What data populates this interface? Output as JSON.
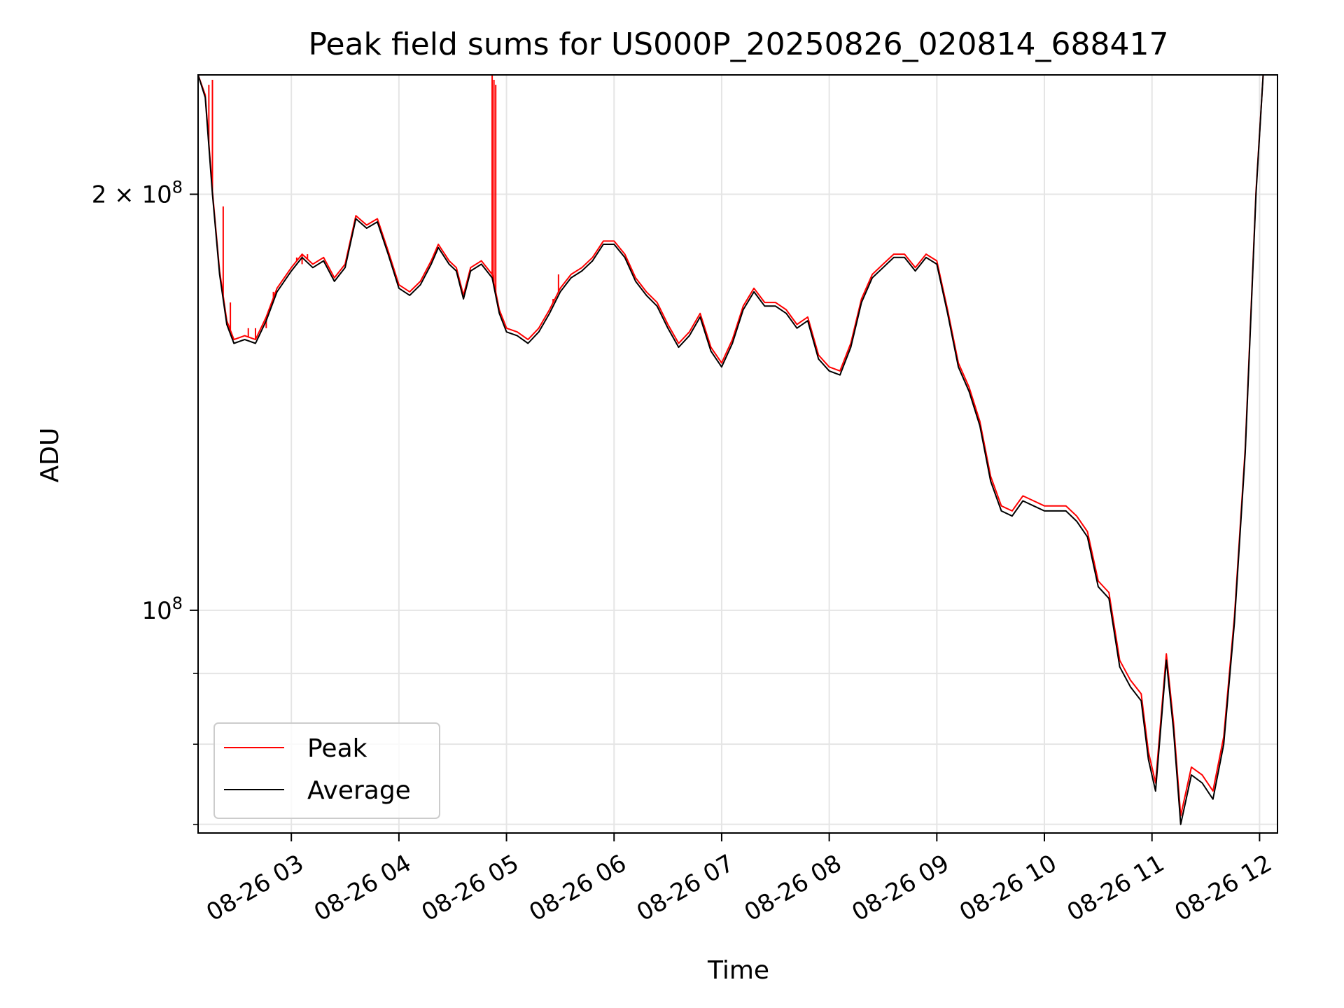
{
  "chart_data": {
    "type": "line",
    "title": "Peak field sums for US000P_20250826_020814_688417",
    "xlabel": "Time",
    "ylabel": "ADU",
    "y_scale": "log",
    "grid": true,
    "legend_position": "lower-left",
    "xlim": [
      "2025-08-26 02:08",
      "2025-08-26 12:10"
    ],
    "ylim": [
      69000000,
      244000000
    ],
    "x_ticks": [
      {
        "x": "2025-08-26 03:00",
        "label": "08-26 03"
      },
      {
        "x": "2025-08-26 04:00",
        "label": "08-26 04"
      },
      {
        "x": "2025-08-26 05:00",
        "label": "08-26 05"
      },
      {
        "x": "2025-08-26 06:00",
        "label": "08-26 06"
      },
      {
        "x": "2025-08-26 07:00",
        "label": "08-26 07"
      },
      {
        "x": "2025-08-26 08:00",
        "label": "08-26 08"
      },
      {
        "x": "2025-08-26 09:00",
        "label": "08-26 09"
      },
      {
        "x": "2025-08-26 10:00",
        "label": "08-26 10"
      },
      {
        "x": "2025-08-26 11:00",
        "label": "08-26 11"
      },
      {
        "x": "2025-08-26 12:00",
        "label": "08-26 12"
      }
    ],
    "y_major_ticks": [
      {
        "value": 100000000,
        "base": "10",
        "exp": "8",
        "mult": ""
      },
      {
        "value": 200000000,
        "base": "10",
        "exp": "8",
        "mult": "2 × "
      }
    ],
    "y_minor_ticks": [
      70000000,
      80000000,
      90000000
    ],
    "colors": {
      "peak": "#ff0000",
      "average": "#000000",
      "grid": "#e5e5e5"
    },
    "series": [
      {
        "name": "Average",
        "color": "#000000",
        "points": [
          [
            "2025-08-26 02:08",
            244000000
          ],
          [
            "2025-08-26 02:12",
            235000000
          ],
          [
            "2025-08-26 02:16",
            200000000
          ],
          [
            "2025-08-26 02:20",
            175000000
          ],
          [
            "2025-08-26 02:24",
            161000000
          ],
          [
            "2025-08-26 02:28",
            156000000
          ],
          [
            "2025-08-26 02:34",
            157000000
          ],
          [
            "2025-08-26 02:40",
            156000000
          ],
          [
            "2025-08-26 02:46",
            162000000
          ],
          [
            "2025-08-26 02:52",
            170000000
          ],
          [
            "2025-08-26 03:00",
            176000000
          ],
          [
            "2025-08-26 03:06",
            180000000
          ],
          [
            "2025-08-26 03:12",
            177000000
          ],
          [
            "2025-08-26 03:18",
            179000000
          ],
          [
            "2025-08-26 03:24",
            173000000
          ],
          [
            "2025-08-26 03:30",
            177000000
          ],
          [
            "2025-08-26 03:36",
            192000000
          ],
          [
            "2025-08-26 03:42",
            189000000
          ],
          [
            "2025-08-26 03:48",
            191000000
          ],
          [
            "2025-08-26 03:54",
            181000000
          ],
          [
            "2025-08-26 04:00",
            171000000
          ],
          [
            "2025-08-26 04:06",
            169000000
          ],
          [
            "2025-08-26 04:12",
            172000000
          ],
          [
            "2025-08-26 04:18",
            178000000
          ],
          [
            "2025-08-26 04:22",
            183000000
          ],
          [
            "2025-08-26 04:28",
            178000000
          ],
          [
            "2025-08-26 04:32",
            176000000
          ],
          [
            "2025-08-26 04:36",
            168000000
          ],
          [
            "2025-08-26 04:40",
            176000000
          ],
          [
            "2025-08-26 04:46",
            178000000
          ],
          [
            "2025-08-26 04:52",
            174000000
          ],
          [
            "2025-08-26 04:56",
            164000000
          ],
          [
            "2025-08-26 05:00",
            159000000
          ],
          [
            "2025-08-26 05:06",
            158000000
          ],
          [
            "2025-08-26 05:12",
            156000000
          ],
          [
            "2025-08-26 05:18",
            159000000
          ],
          [
            "2025-08-26 05:24",
            164000000
          ],
          [
            "2025-08-26 05:30",
            170000000
          ],
          [
            "2025-08-26 05:36",
            174000000
          ],
          [
            "2025-08-26 05:42",
            176000000
          ],
          [
            "2025-08-26 05:48",
            179000000
          ],
          [
            "2025-08-26 05:54",
            184000000
          ],
          [
            "2025-08-26 06:00",
            184000000
          ],
          [
            "2025-08-26 06:06",
            180000000
          ],
          [
            "2025-08-26 06:12",
            173000000
          ],
          [
            "2025-08-26 06:18",
            169000000
          ],
          [
            "2025-08-26 06:24",
            166000000
          ],
          [
            "2025-08-26 06:30",
            160000000
          ],
          [
            "2025-08-26 06:36",
            155000000
          ],
          [
            "2025-08-26 06:42",
            158000000
          ],
          [
            "2025-08-26 06:48",
            163000000
          ],
          [
            "2025-08-26 06:54",
            154000000
          ],
          [
            "2025-08-26 07:00",
            150000000
          ],
          [
            "2025-08-26 07:06",
            156000000
          ],
          [
            "2025-08-26 07:12",
            165000000
          ],
          [
            "2025-08-26 07:18",
            170000000
          ],
          [
            "2025-08-26 07:24",
            166000000
          ],
          [
            "2025-08-26 07:30",
            166000000
          ],
          [
            "2025-08-26 07:36",
            164000000
          ],
          [
            "2025-08-26 07:42",
            160000000
          ],
          [
            "2025-08-26 07:48",
            162000000
          ],
          [
            "2025-08-26 07:54",
            152000000
          ],
          [
            "2025-08-26 08:00",
            149000000
          ],
          [
            "2025-08-26 08:06",
            148000000
          ],
          [
            "2025-08-26 08:12",
            155000000
          ],
          [
            "2025-08-26 08:18",
            167000000
          ],
          [
            "2025-08-26 08:24",
            174000000
          ],
          [
            "2025-08-26 08:30",
            177000000
          ],
          [
            "2025-08-26 08:36",
            180000000
          ],
          [
            "2025-08-26 08:42",
            180000000
          ],
          [
            "2025-08-26 08:48",
            176000000
          ],
          [
            "2025-08-26 08:54",
            180000000
          ],
          [
            "2025-08-26 09:00",
            178000000
          ],
          [
            "2025-08-26 09:06",
            164000000
          ],
          [
            "2025-08-26 09:12",
            150000000
          ],
          [
            "2025-08-26 09:18",
            144000000
          ],
          [
            "2025-08-26 09:24",
            136000000
          ],
          [
            "2025-08-26 09:30",
            124000000
          ],
          [
            "2025-08-26 09:36",
            118000000
          ],
          [
            "2025-08-26 09:42",
            117000000
          ],
          [
            "2025-08-26 09:48",
            120000000
          ],
          [
            "2025-08-26 09:54",
            119000000
          ],
          [
            "2025-08-26 10:00",
            118000000
          ],
          [
            "2025-08-26 10:06",
            118000000
          ],
          [
            "2025-08-26 10:12",
            118000000
          ],
          [
            "2025-08-26 10:18",
            116000000
          ],
          [
            "2025-08-26 10:24",
            113000000
          ],
          [
            "2025-08-26 10:30",
            104000000
          ],
          [
            "2025-08-26 10:36",
            102000000
          ],
          [
            "2025-08-26 10:42",
            91000000
          ],
          [
            "2025-08-26 10:48",
            88000000
          ],
          [
            "2025-08-26 10:54",
            86000000
          ],
          [
            "2025-08-26 10:58",
            78000000
          ],
          [
            "2025-08-26 11:02",
            74000000
          ],
          [
            "2025-08-26 11:08",
            92000000
          ],
          [
            "2025-08-26 11:12",
            82000000
          ],
          [
            "2025-08-26 11:16",
            70000000
          ],
          [
            "2025-08-26 11:22",
            76000000
          ],
          [
            "2025-08-26 11:28",
            75000000
          ],
          [
            "2025-08-26 11:34",
            73000000
          ],
          [
            "2025-08-26 11:40",
            80000000
          ],
          [
            "2025-08-26 11:46",
            98000000
          ],
          [
            "2025-08-26 11:52",
            130000000
          ],
          [
            "2025-08-26 11:58",
            200000000
          ],
          [
            "2025-08-26 12:02",
            244000000
          ]
        ]
      },
      {
        "name": "Peak",
        "color": "#ff0000",
        "points": [
          [
            "2025-08-26 02:08",
            244000000
          ],
          [
            "2025-08-26 02:12",
            236000000
          ],
          [
            "2025-08-26 02:16",
            201000000
          ],
          [
            "2025-08-26 02:20",
            176000000
          ],
          [
            "2025-08-26 02:24",
            162000000
          ],
          [
            "2025-08-26 02:28",
            157000000
          ],
          [
            "2025-08-26 02:34",
            158000000
          ],
          [
            "2025-08-26 02:40",
            157000000
          ],
          [
            "2025-08-26 02:46",
            163000000
          ],
          [
            "2025-08-26 02:52",
            171000000
          ],
          [
            "2025-08-26 03:00",
            177000000
          ],
          [
            "2025-08-26 03:06",
            181000000
          ],
          [
            "2025-08-26 03:12",
            178000000
          ],
          [
            "2025-08-26 03:18",
            180000000
          ],
          [
            "2025-08-26 03:24",
            174000000
          ],
          [
            "2025-08-26 03:30",
            178000000
          ],
          [
            "2025-08-26 03:36",
            193000000
          ],
          [
            "2025-08-26 03:42",
            190000000
          ],
          [
            "2025-08-26 03:48",
            192000000
          ],
          [
            "2025-08-26 03:54",
            182000000
          ],
          [
            "2025-08-26 04:00",
            172000000
          ],
          [
            "2025-08-26 04:06",
            170000000
          ],
          [
            "2025-08-26 04:12",
            173000000
          ],
          [
            "2025-08-26 04:18",
            179000000
          ],
          [
            "2025-08-26 04:22",
            184000000
          ],
          [
            "2025-08-26 04:28",
            179000000
          ],
          [
            "2025-08-26 04:32",
            177000000
          ],
          [
            "2025-08-26 04:36",
            169000000
          ],
          [
            "2025-08-26 04:40",
            177000000
          ],
          [
            "2025-08-26 04:46",
            179000000
          ],
          [
            "2025-08-26 04:52",
            175000000
          ],
          [
            "2025-08-26 04:56",
            165000000
          ],
          [
            "2025-08-26 05:00",
            160000000
          ],
          [
            "2025-08-26 05:06",
            159000000
          ],
          [
            "2025-08-26 05:12",
            157000000
          ],
          [
            "2025-08-26 05:18",
            160000000
          ],
          [
            "2025-08-26 05:24",
            165000000
          ],
          [
            "2025-08-26 05:30",
            171000000
          ],
          [
            "2025-08-26 05:36",
            175000000
          ],
          [
            "2025-08-26 05:42",
            177000000
          ],
          [
            "2025-08-26 05:48",
            180000000
          ],
          [
            "2025-08-26 05:54",
            185000000
          ],
          [
            "2025-08-26 06:00",
            185000000
          ],
          [
            "2025-08-26 06:06",
            181000000
          ],
          [
            "2025-08-26 06:12",
            174000000
          ],
          [
            "2025-08-26 06:18",
            170000000
          ],
          [
            "2025-08-26 06:24",
            167000000
          ],
          [
            "2025-08-26 06:30",
            161000000
          ],
          [
            "2025-08-26 06:36",
            156000000
          ],
          [
            "2025-08-26 06:42",
            159000000
          ],
          [
            "2025-08-26 06:48",
            164000000
          ],
          [
            "2025-08-26 06:54",
            155000000
          ],
          [
            "2025-08-26 07:00",
            151000000
          ],
          [
            "2025-08-26 07:06",
            157000000
          ],
          [
            "2025-08-26 07:12",
            166000000
          ],
          [
            "2025-08-26 07:18",
            171000000
          ],
          [
            "2025-08-26 07:24",
            167000000
          ],
          [
            "2025-08-26 07:30",
            167000000
          ],
          [
            "2025-08-26 07:36",
            165000000
          ],
          [
            "2025-08-26 07:42",
            161000000
          ],
          [
            "2025-08-26 07:48",
            163000000
          ],
          [
            "2025-08-26 07:54",
            153000000
          ],
          [
            "2025-08-26 08:00",
            150000000
          ],
          [
            "2025-08-26 08:06",
            149000000
          ],
          [
            "2025-08-26 08:12",
            156000000
          ],
          [
            "2025-08-26 08:18",
            168000000
          ],
          [
            "2025-08-26 08:24",
            175000000
          ],
          [
            "2025-08-26 08:30",
            178000000
          ],
          [
            "2025-08-26 08:36",
            181000000
          ],
          [
            "2025-08-26 08:42",
            181000000
          ],
          [
            "2025-08-26 08:48",
            177000000
          ],
          [
            "2025-08-26 08:54",
            181000000
          ],
          [
            "2025-08-26 09:00",
            179000000
          ],
          [
            "2025-08-26 09:06",
            165000000
          ],
          [
            "2025-08-26 09:12",
            151000000
          ],
          [
            "2025-08-26 09:18",
            145000000
          ],
          [
            "2025-08-26 09:24",
            137000000
          ],
          [
            "2025-08-26 09:30",
            125000000
          ],
          [
            "2025-08-26 09:36",
            119000000
          ],
          [
            "2025-08-26 09:42",
            118000000
          ],
          [
            "2025-08-26 09:48",
            121000000
          ],
          [
            "2025-08-26 09:54",
            120000000
          ],
          [
            "2025-08-26 10:00",
            119000000
          ],
          [
            "2025-08-26 10:06",
            119000000
          ],
          [
            "2025-08-26 10:12",
            119000000
          ],
          [
            "2025-08-26 10:18",
            117000000
          ],
          [
            "2025-08-26 10:24",
            114000000
          ],
          [
            "2025-08-26 10:30",
            105000000
          ],
          [
            "2025-08-26 10:36",
            103000000
          ],
          [
            "2025-08-26 10:42",
            92000000
          ],
          [
            "2025-08-26 10:48",
            89000000
          ],
          [
            "2025-08-26 10:54",
            87000000
          ],
          [
            "2025-08-26 10:58",
            79000000
          ],
          [
            "2025-08-26 11:02",
            75000000
          ],
          [
            "2025-08-26 11:08",
            93000000
          ],
          [
            "2025-08-26 11:12",
            83000000
          ],
          [
            "2025-08-26 11:16",
            71000000
          ],
          [
            "2025-08-26 11:22",
            77000000
          ],
          [
            "2025-08-26 11:28",
            76000000
          ],
          [
            "2025-08-26 11:34",
            74000000
          ],
          [
            "2025-08-26 11:40",
            81000000
          ],
          [
            "2025-08-26 11:46",
            99000000
          ],
          [
            "2025-08-26 11:52",
            131000000
          ],
          [
            "2025-08-26 11:58",
            201000000
          ],
          [
            "2025-08-26 12:02",
            244000000
          ]
        ],
        "spikes": [
          [
            "2025-08-26 02:14",
            240000000
          ],
          [
            "2025-08-26 02:16",
            242000000
          ],
          [
            "2025-08-26 02:22",
            196000000
          ],
          [
            "2025-08-26 02:26",
            167000000
          ],
          [
            "2025-08-26 02:36",
            160000000
          ],
          [
            "2025-08-26 02:40",
            160000000
          ],
          [
            "2025-08-26 02:46",
            160000000
          ],
          [
            "2025-08-26 02:50",
            170000000
          ],
          [
            "2025-08-26 03:03",
            180000000
          ],
          [
            "2025-08-26 03:06",
            178000000
          ],
          [
            "2025-08-26 03:09",
            181000000
          ],
          [
            "2025-08-26 04:52",
            244000000
          ],
          [
            "2025-08-26 04:53",
            242000000
          ],
          [
            "2025-08-26 04:54",
            240000000
          ],
          [
            "2025-08-26 05:26",
            168000000
          ],
          [
            "2025-08-26 05:29",
            175000000
          ]
        ]
      }
    ]
  }
}
